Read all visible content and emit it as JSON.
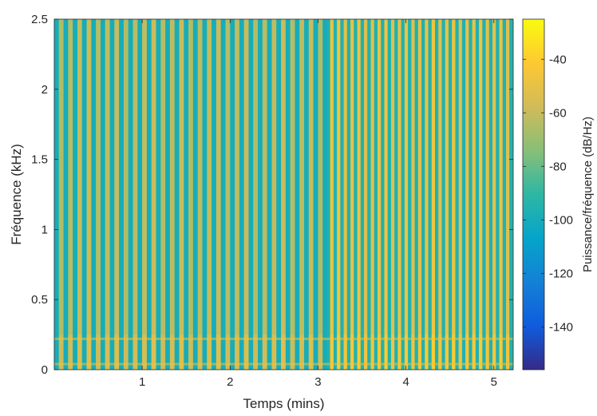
{
  "chart_data": {
    "type": "heatmap",
    "title": "",
    "xlabel": "Temps (mins)",
    "ylabel": "Fréquence (kHz)",
    "xlim": [
      0.0,
      5.22
    ],
    "ylim": [
      0.0,
      2.5
    ],
    "xticks": [
      1,
      2,
      3,
      4,
      5
    ],
    "yticks": [
      0,
      0.5,
      1,
      1.5,
      2,
      2.5
    ],
    "grid": false,
    "colormap": "parula",
    "colorbar": {
      "label": "Puissance/fréquence (dB/Hz)",
      "range": [
        -156,
        -25
      ],
      "ticks": [
        -140,
        -120,
        -100,
        -80,
        -60,
        -40
      ]
    },
    "segments": [
      {
        "t_start": 0.0,
        "t_end": 3.1,
        "stripes_per_min": 9.5,
        "low_level_db": -100,
        "high_level_db": -62
      },
      {
        "t_start": 3.1,
        "t_end": 5.22,
        "stripes_per_min": 13.0,
        "low_level_db": -96,
        "high_level_db": -50
      }
    ],
    "low_frequency_bands_khz": [
      0.04,
      0.22
    ]
  },
  "colors": {
    "parula_stops": [
      "#352a87",
      "#0f5cdd",
      "#1481d6",
      "#06a4ca",
      "#2eb7a4",
      "#87bf77",
      "#d1bb59",
      "#fec832",
      "#f9fb0e"
    ]
  }
}
